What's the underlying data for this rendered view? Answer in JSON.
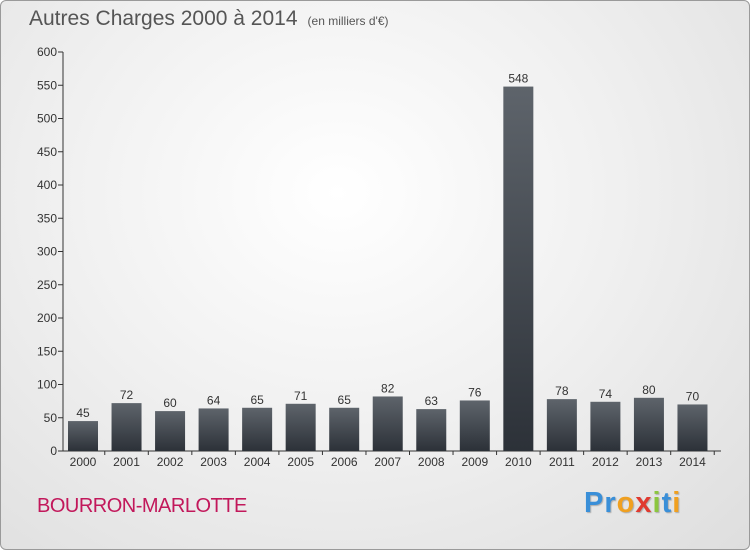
{
  "chart_data": {
    "type": "bar",
    "title": "Autres Charges 2000 à 2014",
    "subtitle": "(en milliers d'€)",
    "categories": [
      "2000",
      "2001",
      "2002",
      "2003",
      "2004",
      "2005",
      "2006",
      "2007",
      "2008",
      "2009",
      "2010",
      "2011",
      "2012",
      "2013",
      "2014"
    ],
    "values": [
      45,
      72,
      60,
      64,
      65,
      71,
      65,
      82,
      63,
      76,
      548,
      78,
      74,
      80,
      70
    ],
    "ylim": [
      0,
      600
    ],
    "yticks": [
      0,
      50,
      100,
      150,
      200,
      250,
      300,
      350,
      400,
      450,
      500,
      550,
      600
    ],
    "grid": false,
    "bar_color_top": "#5e646b",
    "bar_color_bottom": "#2c3138"
  },
  "footer": {
    "place": "BOURRON-MARLOTTE",
    "place_color": "#c2185b",
    "logo_letters": [
      {
        "ch": "P",
        "color": "#3a8fd8"
      },
      {
        "ch": "r",
        "color": "#3a8fd8"
      },
      {
        "ch": "o",
        "color": "#f0a020"
      },
      {
        "ch": "x",
        "color": "#e03a30"
      },
      {
        "ch": "i",
        "color": "#8cc63f"
      },
      {
        "ch": "t",
        "color": "#3a8fd8"
      },
      {
        "ch": "i",
        "color": "#f0a020"
      }
    ]
  }
}
